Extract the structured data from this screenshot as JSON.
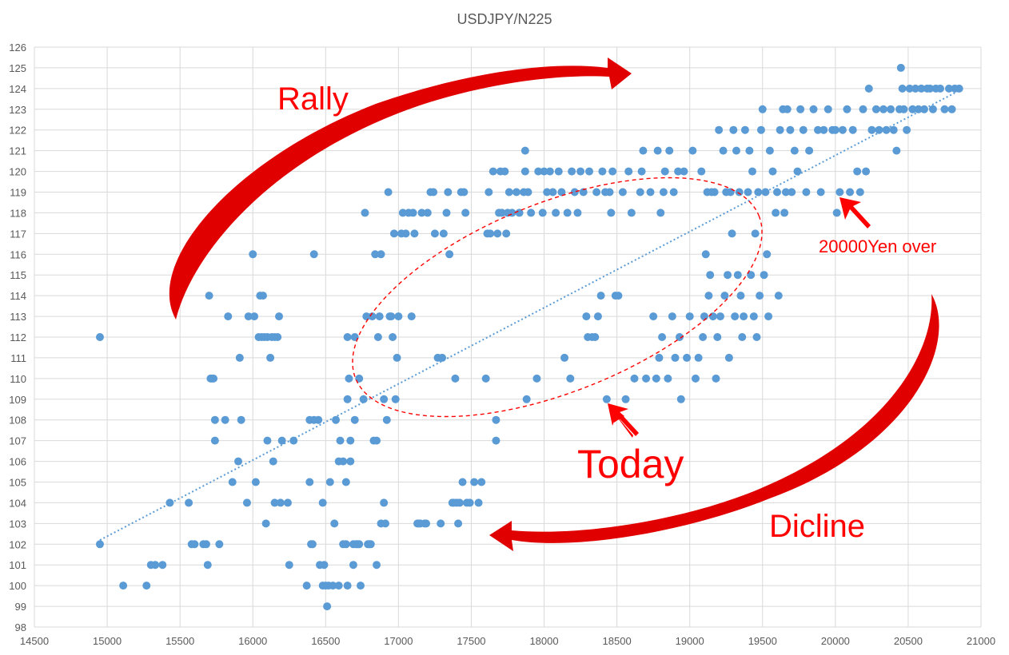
{
  "chart_data": {
    "type": "scatter",
    "title": "USDJPY/N225",
    "xlabel": "",
    "ylabel": "",
    "xlim": [
      14500,
      21000
    ],
    "ylim": [
      98,
      126
    ],
    "x_ticks": [
      14500,
      15000,
      15500,
      16000,
      16500,
      17000,
      17500,
      18000,
      18500,
      19000,
      19500,
      20000,
      20500,
      21000
    ],
    "y_ticks": [
      98,
      99,
      100,
      101,
      102,
      103,
      104,
      105,
      106,
      107,
      108,
      109,
      110,
      111,
      112,
      113,
      114,
      115,
      116,
      117,
      118,
      119,
      120,
      121,
      122,
      123,
      124,
      125,
      126
    ],
    "grid": true,
    "legend": "none",
    "colors": {
      "points": "#5b9bd5",
      "trendline": "#5b9bd5",
      "annotation": "#ff0000",
      "arrow_dark": "#c00000",
      "grid": "#d9d9d9",
      "text": "#595959"
    },
    "trendline": {
      "style": "dotted",
      "x": [
        14950,
        20850
      ],
      "y": [
        102.2,
        123.9
      ]
    },
    "annotations": [
      {
        "text": "Rally"
      },
      {
        "text": "Today",
        "point": [
          18430,
          109
        ]
      },
      {
        "text": "Dicline"
      },
      {
        "text": "20000Yen over",
        "point": [
          20030,
          119
        ]
      }
    ],
    "points": [
      [
        14950,
        112
      ],
      [
        14950,
        102
      ],
      [
        15110,
        100
      ],
      [
        15270,
        100
      ],
      [
        15300,
        101
      ],
      [
        15330,
        101
      ],
      [
        15380,
        101
      ],
      [
        15430,
        104
      ],
      [
        15560,
        104
      ],
      [
        15580,
        102
      ],
      [
        15600,
        102
      ],
      [
        15660,
        102
      ],
      [
        15680,
        102
      ],
      [
        15690,
        101
      ],
      [
        15700,
        114
      ],
      [
        15710,
        110
      ],
      [
        15720,
        110
      ],
      [
        15730,
        110
      ],
      [
        15740,
        108
      ],
      [
        15740,
        107
      ],
      [
        15770,
        102
      ],
      [
        15810,
        108
      ],
      [
        15830,
        113
      ],
      [
        15860,
        105
      ],
      [
        15900,
        106
      ],
      [
        15910,
        111
      ],
      [
        15920,
        108
      ],
      [
        15960,
        104
      ],
      [
        15970,
        113
      ],
      [
        16000,
        116
      ],
      [
        16020,
        105
      ],
      [
        16010,
        113
      ],
      [
        16040,
        112
      ],
      [
        16050,
        114
      ],
      [
        16060,
        112
      ],
      [
        16070,
        114
      ],
      [
        16080,
        112
      ],
      [
        16100,
        112
      ],
      [
        16090,
        103
      ],
      [
        16100,
        107
      ],
      [
        16120,
        111
      ],
      [
        16130,
        112
      ],
      [
        16140,
        106
      ],
      [
        16150,
        104
      ],
      [
        16150,
        112
      ],
      [
        16170,
        112
      ],
      [
        16180,
        113
      ],
      [
        16190,
        104
      ],
      [
        16200,
        107
      ],
      [
        16240,
        104
      ],
      [
        16250,
        101
      ],
      [
        16280,
        107
      ],
      [
        16370,
        100
      ],
      [
        16390,
        105
      ],
      [
        16390,
        108
      ],
      [
        16400,
        102
      ],
      [
        16410,
        102
      ],
      [
        16420,
        116
      ],
      [
        16420,
        108
      ],
      [
        16450,
        108
      ],
      [
        16460,
        101
      ],
      [
        16480,
        104
      ],
      [
        16480,
        100
      ],
      [
        16490,
        101
      ],
      [
        16500,
        100
      ],
      [
        16510,
        99
      ],
      [
        16520,
        100
      ],
      [
        16530,
        105
      ],
      [
        16550,
        100
      ],
      [
        16560,
        103
      ],
      [
        16570,
        108
      ],
      [
        16590,
        100
      ],
      [
        16590,
        106
      ],
      [
        16600,
        107
      ],
      [
        16620,
        102
      ],
      [
        16620,
        106
      ],
      [
        16640,
        105
      ],
      [
        16640,
        102
      ],
      [
        16650,
        100
      ],
      [
        16650,
        109
      ],
      [
        16650,
        112
      ],
      [
        16660,
        110
      ],
      [
        16670,
        106
      ],
      [
        16670,
        107
      ],
      [
        16690,
        101
      ],
      [
        16690,
        102
      ],
      [
        16700,
        108
      ],
      [
        16700,
        112
      ],
      [
        16710,
        102
      ],
      [
        16720,
        102
      ],
      [
        16730,
        110
      ],
      [
        16730,
        102
      ],
      [
        16740,
        100
      ],
      [
        16760,
        109
      ],
      [
        16770,
        118
      ],
      [
        16780,
        113
      ],
      [
        16790,
        102
      ],
      [
        16800,
        102
      ],
      [
        16810,
        102
      ],
      [
        16820,
        113
      ],
      [
        16830,
        107
      ],
      [
        16840,
        116
      ],
      [
        16850,
        101
      ],
      [
        16850,
        107
      ],
      [
        16860,
        112
      ],
      [
        16870,
        113
      ],
      [
        16880,
        103
      ],
      [
        16880,
        116
      ],
      [
        16900,
        104
      ],
      [
        16900,
        109
      ],
      [
        16910,
        103
      ],
      [
        16920,
        108
      ],
      [
        16930,
        119
      ],
      [
        16940,
        113
      ],
      [
        16950,
        113
      ],
      [
        16960,
        112
      ],
      [
        16970,
        117
      ],
      [
        16980,
        109
      ],
      [
        16990,
        111
      ],
      [
        17000,
        113
      ],
      [
        17020,
        117
      ],
      [
        17030,
        118
      ],
      [
        17050,
        117
      ],
      [
        17070,
        118
      ],
      [
        17090,
        113
      ],
      [
        17100,
        118
      ],
      [
        17110,
        117
      ],
      [
        17130,
        103
      ],
      [
        17140,
        103
      ],
      [
        17150,
        103
      ],
      [
        17160,
        118
      ],
      [
        17180,
        103
      ],
      [
        17190,
        103
      ],
      [
        17200,
        118
      ],
      [
        17220,
        119
      ],
      [
        17240,
        119
      ],
      [
        17250,
        117
      ],
      [
        17270,
        111
      ],
      [
        17290,
        103
      ],
      [
        17300,
        111
      ],
      [
        17310,
        117
      ],
      [
        17330,
        118
      ],
      [
        17340,
        119
      ],
      [
        17350,
        116
      ],
      [
        17370,
        104
      ],
      [
        17380,
        104
      ],
      [
        17390,
        110
      ],
      [
        17400,
        104
      ],
      [
        17410,
        103
      ],
      [
        17420,
        104
      ],
      [
        17430,
        119
      ],
      [
        17440,
        105
      ],
      [
        17450,
        119
      ],
      [
        17460,
        118
      ],
      [
        17470,
        104
      ],
      [
        17490,
        104
      ],
      [
        17520,
        105
      ],
      [
        17550,
        104
      ],
      [
        17570,
        105
      ],
      [
        17600,
        110
      ],
      [
        17610,
        117
      ],
      [
        17620,
        119
      ],
      [
        17630,
        117
      ],
      [
        17650,
        120
      ],
      [
        17670,
        108
      ],
      [
        17670,
        107
      ],
      [
        17680,
        117
      ],
      [
        17690,
        118
      ],
      [
        17700,
        120
      ],
      [
        17710,
        118
      ],
      [
        17730,
        120
      ],
      [
        17740,
        117
      ],
      [
        17750,
        118
      ],
      [
        17760,
        119
      ],
      [
        17780,
        118
      ],
      [
        17810,
        119
      ],
      [
        17830,
        118
      ],
      [
        17860,
        119
      ],
      [
        17870,
        120
      ],
      [
        17880,
        109
      ],
      [
        17870,
        121
      ],
      [
        17890,
        119
      ],
      [
        17910,
        118
      ],
      [
        17950,
        110
      ],
      [
        17960,
        120
      ],
      [
        17990,
        118
      ],
      [
        18000,
        120
      ],
      [
        18020,
        119
      ],
      [
        18040,
        120
      ],
      [
        18060,
        119
      ],
      [
        18080,
        118
      ],
      [
        18100,
        120
      ],
      [
        18120,
        119
      ],
      [
        18140,
        111
      ],
      [
        18160,
        118
      ],
      [
        18180,
        110
      ],
      [
        18190,
        120
      ],
      [
        18210,
        119
      ],
      [
        18230,
        118
      ],
      [
        18250,
        120
      ],
      [
        18270,
        119
      ],
      [
        18290,
        113
      ],
      [
        18300,
        112
      ],
      [
        18310,
        120
      ],
      [
        18330,
        112
      ],
      [
        18350,
        112
      ],
      [
        18360,
        119
      ],
      [
        18370,
        113
      ],
      [
        18390,
        114
      ],
      [
        18400,
        120
      ],
      [
        18420,
        119
      ],
      [
        18430,
        109
      ],
      [
        18450,
        119
      ],
      [
        18460,
        118
      ],
      [
        18470,
        120
      ],
      [
        18490,
        114
      ],
      [
        18510,
        114
      ],
      [
        18540,
        119
      ],
      [
        18560,
        109
      ],
      [
        18580,
        120
      ],
      [
        18600,
        118
      ],
      [
        18620,
        110
      ],
      [
        18660,
        119
      ],
      [
        18670,
        120
      ],
      [
        18680,
        121
      ],
      [
        18700,
        110
      ],
      [
        18730,
        119
      ],
      [
        18750,
        113
      ],
      [
        18770,
        110
      ],
      [
        18780,
        121
      ],
      [
        18790,
        111
      ],
      [
        18800,
        118
      ],
      [
        18810,
        112
      ],
      [
        18820,
        119
      ],
      [
        18830,
        120
      ],
      [
        18850,
        110
      ],
      [
        18860,
        121
      ],
      [
        18880,
        113
      ],
      [
        18890,
        119
      ],
      [
        18900,
        111
      ],
      [
        18920,
        120
      ],
      [
        18930,
        112
      ],
      [
        18940,
        109
      ],
      [
        18960,
        120
      ],
      [
        18980,
        111
      ],
      [
        19000,
        113
      ],
      [
        19020,
        121
      ],
      [
        19040,
        110
      ],
      [
        19060,
        111
      ],
      [
        19080,
        120
      ],
      [
        19090,
        112
      ],
      [
        19100,
        113
      ],
      [
        19110,
        116
      ],
      [
        19120,
        119
      ],
      [
        19130,
        114
      ],
      [
        19140,
        115
      ],
      [
        19150,
        119
      ],
      [
        19160,
        113
      ],
      [
        19170,
        119
      ],
      [
        19180,
        110
      ],
      [
        19190,
        112
      ],
      [
        19200,
        122
      ],
      [
        19210,
        113
      ],
      [
        19230,
        121
      ],
      [
        19240,
        114
      ],
      [
        19250,
        119
      ],
      [
        19260,
        115
      ],
      [
        19270,
        111
      ],
      [
        19280,
        119
      ],
      [
        19290,
        117
      ],
      [
        19300,
        122
      ],
      [
        19310,
        113
      ],
      [
        19320,
        121
      ],
      [
        19330,
        115
      ],
      [
        19340,
        119
      ],
      [
        19350,
        114
      ],
      [
        19360,
        112
      ],
      [
        19370,
        113
      ],
      [
        19380,
        122
      ],
      [
        19400,
        119
      ],
      [
        19410,
        121
      ],
      [
        19420,
        115
      ],
      [
        19430,
        120
      ],
      [
        19440,
        113
      ],
      [
        19450,
        117
      ],
      [
        19460,
        112
      ],
      [
        19470,
        119
      ],
      [
        19480,
        114
      ],
      [
        19490,
        122
      ],
      [
        19500,
        123
      ],
      [
        19510,
        115
      ],
      [
        19520,
        119
      ],
      [
        19530,
        116
      ],
      [
        19540,
        113
      ],
      [
        19550,
        121
      ],
      [
        19570,
        120
      ],
      [
        19590,
        118
      ],
      [
        19600,
        119
      ],
      [
        19610,
        114
      ],
      [
        19620,
        122
      ],
      [
        19640,
        123
      ],
      [
        19650,
        118
      ],
      [
        19660,
        119
      ],
      [
        19670,
        123
      ],
      [
        19690,
        122
      ],
      [
        19700,
        119
      ],
      [
        19720,
        121
      ],
      [
        19740,
        120
      ],
      [
        19760,
        123
      ],
      [
        19780,
        122
      ],
      [
        19800,
        119
      ],
      [
        19820,
        121
      ],
      [
        19850,
        123
      ],
      [
        19880,
        122
      ],
      [
        19900,
        119
      ],
      [
        19920,
        122
      ],
      [
        19950,
        123
      ],
      [
        19980,
        122
      ],
      [
        20000,
        122
      ],
      [
        20010,
        118
      ],
      [
        20030,
        119
      ],
      [
        20050,
        122
      ],
      [
        20080,
        123
      ],
      [
        20100,
        119
      ],
      [
        20120,
        122
      ],
      [
        20150,
        120
      ],
      [
        20170,
        119
      ],
      [
        20190,
        123
      ],
      [
        20210,
        120
      ],
      [
        20230,
        124
      ],
      [
        20250,
        122
      ],
      [
        20280,
        123
      ],
      [
        20300,
        122
      ],
      [
        20330,
        123
      ],
      [
        20350,
        122
      ],
      [
        20380,
        123
      ],
      [
        20400,
        122
      ],
      [
        20420,
        121
      ],
      [
        20440,
        123
      ],
      [
        20450,
        125
      ],
      [
        20460,
        124
      ],
      [
        20470,
        123
      ],
      [
        20490,
        122
      ],
      [
        20510,
        124
      ],
      [
        20530,
        123
      ],
      [
        20550,
        124
      ],
      [
        20570,
        123
      ],
      [
        20590,
        124
      ],
      [
        20610,
        123
      ],
      [
        20630,
        124
      ],
      [
        20650,
        124
      ],
      [
        20670,
        123
      ],
      [
        20690,
        124
      ],
      [
        20720,
        124
      ],
      [
        20750,
        123
      ],
      [
        20780,
        124
      ],
      [
        20800,
        123
      ],
      [
        20820,
        124
      ],
      [
        20850,
        124
      ]
    ]
  }
}
